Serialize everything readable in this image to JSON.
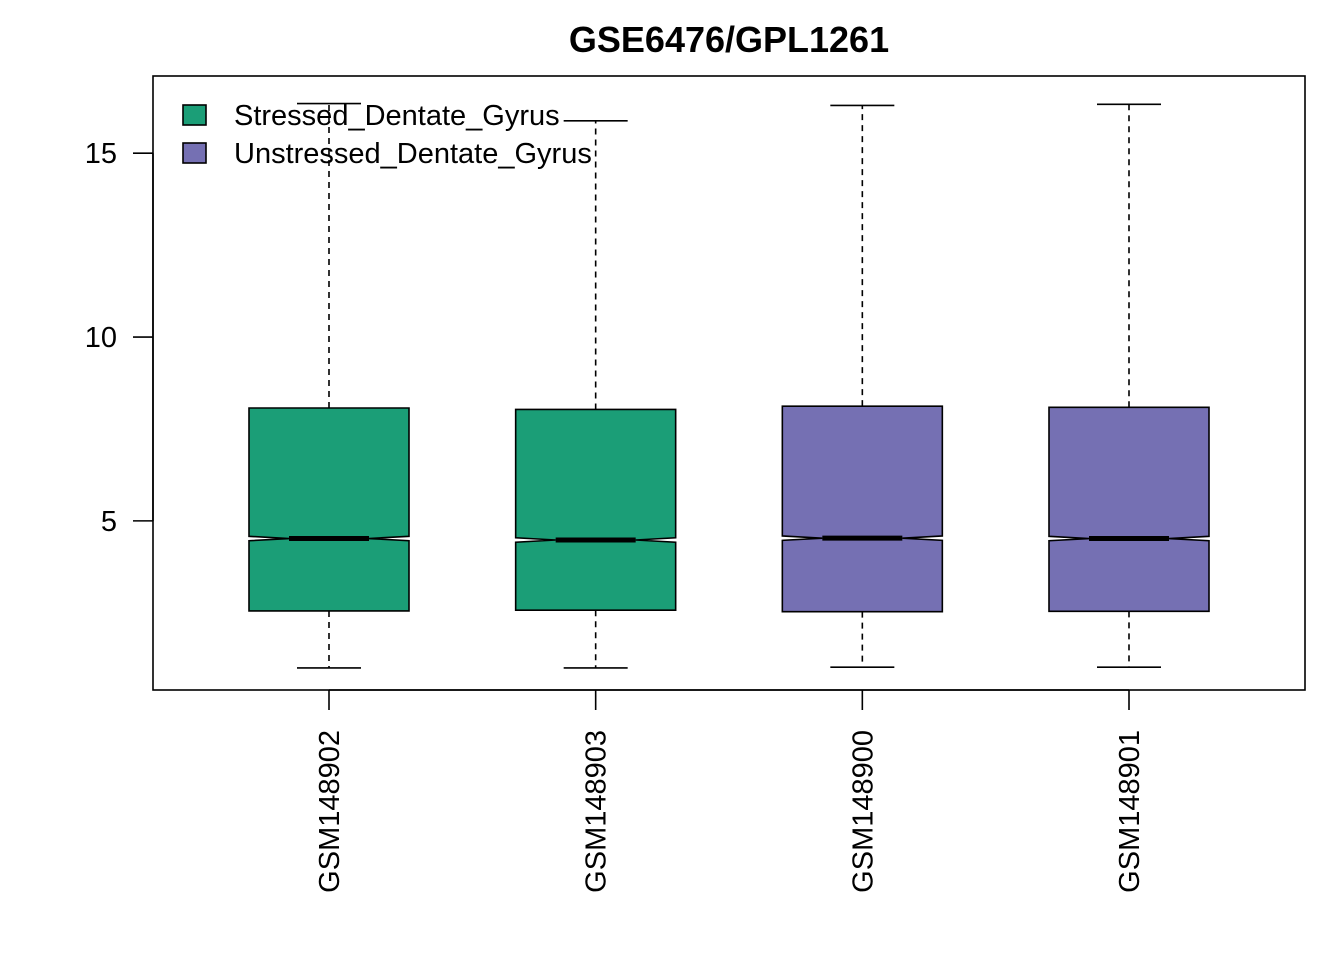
{
  "chart_data": {
    "type": "box",
    "title": "GSE6476/GPL1261",
    "xlabel": "",
    "ylabel": "",
    "ylim": [
      0.4,
      17.1
    ],
    "yticks": [
      5,
      10,
      15
    ],
    "grid": false,
    "notched": true,
    "legend": {
      "position": "top-left",
      "entries": [
        {
          "label": "Stressed_Dentate_Gyrus",
          "color": "#1B9E77"
        },
        {
          "label": "Unstressed_Dentate_Gyrus",
          "color": "#7570B3"
        }
      ]
    },
    "categories": [
      "GSM148902",
      "GSM148903",
      "GSM148900",
      "GSM148901"
    ],
    "boxes": [
      {
        "name": "GSM148902",
        "group": "Stressed_Dentate_Gyrus",
        "min": 1.0,
        "q1": 2.55,
        "median": 4.52,
        "q3": 8.07,
        "max": 16.35,
        "notch_low": 4.46,
        "notch_high": 4.58
      },
      {
        "name": "GSM148903",
        "group": "Stressed_Dentate_Gyrus",
        "min": 1.0,
        "q1": 2.57,
        "median": 4.48,
        "q3": 8.03,
        "max": 15.88,
        "notch_low": 4.42,
        "notch_high": 4.54
      },
      {
        "name": "GSM148900",
        "group": "Unstressed_Dentate_Gyrus",
        "min": 1.02,
        "q1": 2.53,
        "median": 4.53,
        "q3": 8.12,
        "max": 16.3,
        "notch_low": 4.47,
        "notch_high": 4.59
      },
      {
        "name": "GSM148901",
        "group": "Unstressed_Dentate_Gyrus",
        "min": 1.02,
        "q1": 2.54,
        "median": 4.52,
        "q3": 8.09,
        "max": 16.33,
        "notch_low": 4.46,
        "notch_high": 4.58
      }
    ]
  }
}
